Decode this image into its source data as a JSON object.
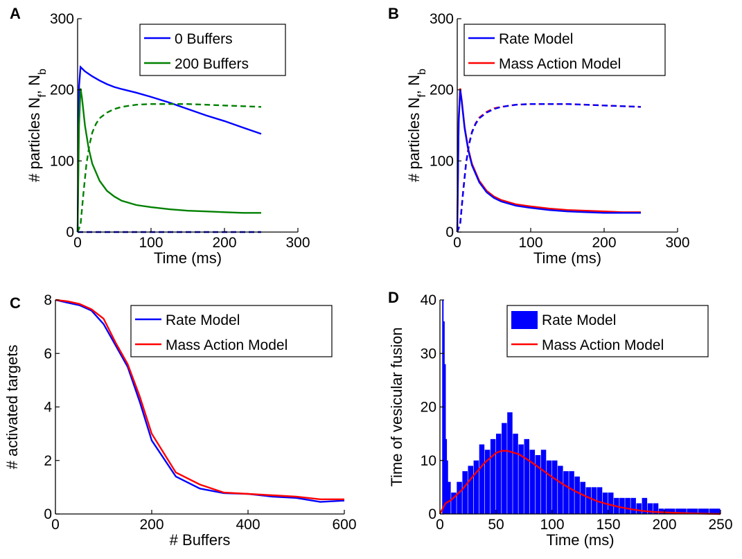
{
  "colors": {
    "blue": "#0000ff",
    "green": "#008000",
    "red": "#ff0000",
    "axis": "#000000"
  },
  "chart_data": [
    {
      "panel": "A",
      "type": "line",
      "xlabel": "Time (ms)",
      "ylabel_parts": [
        "# particles N",
        "f",
        ", N",
        "b"
      ],
      "xlim": [
        0,
        300
      ],
      "ylim": [
        0,
        300
      ],
      "xticks": [
        0,
        100,
        200,
        300
      ],
      "yticks": [
        0,
        100,
        200,
        300
      ],
      "legend": {
        "placement": "top-right",
        "entries": [
          "0 Buffers",
          "200 Buffers"
        ]
      },
      "series": [
        {
          "name": "0 Buffers",
          "color": "blue",
          "dash": false,
          "x": [
            0,
            2,
            4,
            6,
            10,
            20,
            30,
            40,
            50,
            60,
            80,
            100,
            125,
            150,
            175,
            200,
            225,
            250
          ],
          "y": [
            0,
            205,
            232,
            230,
            226,
            219,
            213,
            208,
            204,
            201,
            196,
            190,
            182,
            173,
            164,
            156,
            147,
            138
          ]
        },
        {
          "name": "0 Buffers",
          "color": "blue",
          "dash": true,
          "x": [
            0,
            5,
            50,
            100,
            150,
            200,
            250
          ],
          "y": [
            0,
            0,
            0,
            0,
            0,
            0,
            0
          ]
        },
        {
          "name": "200 Buffers",
          "color": "green",
          "dash": false,
          "x": [
            0,
            2,
            4,
            6,
            10,
            15,
            20,
            30,
            40,
            50,
            60,
            80,
            100,
            125,
            150,
            175,
            200,
            225,
            250
          ],
          "y": [
            0,
            150,
            202,
            188,
            150,
            118,
            96,
            72,
            58,
            50,
            44,
            38,
            35,
            32,
            30,
            29,
            28,
            27,
            27
          ]
        },
        {
          "name": "200 Buffers",
          "color": "green",
          "dash": true,
          "x": [
            0,
            4,
            8,
            12,
            16,
            20,
            25,
            30,
            40,
            50,
            60,
            80,
            100,
            125,
            150,
            175,
            200,
            225,
            250
          ],
          "y": [
            0,
            10,
            55,
            95,
            122,
            140,
            152,
            160,
            168,
            173,
            176,
            179,
            180,
            180,
            180,
            179,
            178,
            177,
            176
          ]
        }
      ]
    },
    {
      "panel": "B",
      "type": "line",
      "xlabel": "Time (ms)",
      "ylabel_parts": [
        "# particles N",
        "f",
        ", N",
        "b"
      ],
      "xlim": [
        0,
        300
      ],
      "ylim": [
        0,
        300
      ],
      "xticks": [
        0,
        100,
        200,
        300
      ],
      "yticks": [
        0,
        100,
        200,
        300
      ],
      "legend": {
        "placement": "top-right",
        "entries": [
          "Rate Model",
          "Mass Action Model"
        ]
      },
      "series": [
        {
          "name": "Mass Action Model",
          "color": "red",
          "dash": false,
          "x": [
            0,
            2,
            4,
            6,
            10,
            15,
            20,
            30,
            40,
            50,
            60,
            80,
            100,
            125,
            150,
            175,
            200,
            225,
            250
          ],
          "y": [
            0,
            160,
            202,
            186,
            148,
            117,
            96,
            72,
            58,
            50,
            45,
            39,
            36,
            33,
            31,
            30,
            29,
            28,
            28
          ]
        },
        {
          "name": "Rate Model",
          "color": "blue",
          "dash": false,
          "x": [
            0,
            2,
            4,
            6,
            10,
            15,
            20,
            30,
            40,
            50,
            60,
            80,
            100,
            125,
            150,
            175,
            200,
            225,
            250
          ],
          "y": [
            0,
            155,
            200,
            184,
            146,
            115,
            94,
            70,
            56,
            48,
            43,
            37,
            34,
            31,
            29,
            28,
            27,
            27,
            27
          ]
        },
        {
          "name": "Mass Action Model",
          "color": "red",
          "dash": true,
          "x": [
            0,
            4,
            8,
            12,
            16,
            20,
            25,
            30,
            40,
            50,
            60,
            80,
            100,
            125,
            150,
            175,
            200,
            225,
            250
          ],
          "y": [
            0,
            12,
            58,
            97,
            124,
            141,
            153,
            161,
            169,
            174,
            176,
            179,
            180,
            180,
            180,
            179,
            178,
            177,
            176
          ]
        },
        {
          "name": "Rate Model",
          "color": "blue",
          "dash": true,
          "x": [
            0,
            4,
            8,
            12,
            16,
            20,
            25,
            30,
            40,
            50,
            60,
            80,
            100,
            125,
            150,
            175,
            200,
            225,
            250
          ],
          "y": [
            0,
            11,
            56,
            96,
            123,
            140,
            152,
            160,
            168,
            173,
            176,
            179,
            180,
            180,
            180,
            179,
            178,
            177,
            176
          ]
        }
      ]
    },
    {
      "panel": "C",
      "type": "line",
      "xlabel": "# Buffers",
      "ylabel": "# activated targets",
      "xlim": [
        0,
        600
      ],
      "ylim": [
        0,
        8
      ],
      "xticks": [
        0,
        200,
        400,
        600
      ],
      "yticks": [
        0,
        2,
        4,
        6,
        8
      ],
      "legend": {
        "placement": "top-right",
        "entries": [
          "Rate Model",
          "Mass Action Model"
        ]
      },
      "series": [
        {
          "name": "Rate Model",
          "color": "blue",
          "dash": false,
          "x": [
            0,
            25,
            50,
            75,
            100,
            125,
            150,
            175,
            200,
            250,
            300,
            350,
            400,
            450,
            500,
            550,
            600
          ],
          "y": [
            8.0,
            7.9,
            7.8,
            7.6,
            7.1,
            6.3,
            5.5,
            4.2,
            2.75,
            1.4,
            0.95,
            0.78,
            0.75,
            0.65,
            0.6,
            0.45,
            0.5
          ]
        },
        {
          "name": "Mass Action Model",
          "color": "red",
          "dash": false,
          "x": [
            0,
            25,
            50,
            75,
            100,
            125,
            150,
            175,
            200,
            250,
            300,
            350,
            400,
            450,
            500,
            550,
            600
          ],
          "y": [
            8.0,
            7.95,
            7.85,
            7.65,
            7.3,
            6.4,
            5.6,
            4.4,
            3.0,
            1.55,
            1.1,
            0.8,
            0.75,
            0.7,
            0.65,
            0.55,
            0.55
          ]
        }
      ]
    },
    {
      "panel": "D",
      "type": "bar",
      "xlabel": "Time (ms)",
      "ylabel": "Time of vesicular fusion",
      "xlim": [
        0,
        250
      ],
      "ylim": [
        0,
        40
      ],
      "xticks": [
        0,
        50,
        100,
        150,
        200,
        250
      ],
      "yticks": [
        0,
        10,
        20,
        30,
        40
      ],
      "legend": {
        "placement": "top-right",
        "entries": [
          "Rate Model",
          "Mass Action Model"
        ]
      },
      "histogram": {
        "name": "Rate Model",
        "color": "blue",
        "x": [
          2,
          3,
          4,
          5,
          6,
          7,
          10,
          15,
          20,
          25,
          30,
          35,
          40,
          45,
          50,
          55,
          60,
          65,
          70,
          75,
          80,
          85,
          90,
          95,
          100,
          105,
          110,
          115,
          120,
          125,
          130,
          135,
          140,
          145,
          150,
          155,
          160,
          165,
          170,
          175,
          180,
          185,
          190,
          195,
          200,
          210,
          220,
          230,
          240
        ],
        "y": [
          40,
          36,
          28,
          14,
          10,
          6,
          4,
          6,
          8,
          9,
          10,
          13,
          12,
          14,
          15,
          17,
          19,
          15,
          13,
          14,
          12,
          11,
          12,
          10,
          10,
          9,
          8,
          8,
          7,
          6,
          5,
          5,
          5,
          4,
          4,
          3,
          3,
          3,
          3,
          2,
          3,
          2,
          2,
          1,
          1,
          1,
          1,
          1,
          1
        ]
      },
      "series": [
        {
          "name": "Mass Action Model",
          "color": "red",
          "dash": false,
          "x": [
            0,
            5,
            10,
            20,
            30,
            40,
            50,
            55,
            60,
            70,
            80,
            90,
            100,
            110,
            120,
            130,
            140,
            150,
            160,
            170,
            180,
            190,
            200,
            225,
            250
          ],
          "y": [
            0,
            2.0,
            2.6,
            4.6,
            7.2,
            9.6,
            11.4,
            11.8,
            11.8,
            11.2,
            9.9,
            8.4,
            6.9,
            5.5,
            4.3,
            3.3,
            2.4,
            1.8,
            1.3,
            0.9,
            0.6,
            0.4,
            0.3,
            0.1,
            0
          ]
        }
      ]
    }
  ]
}
